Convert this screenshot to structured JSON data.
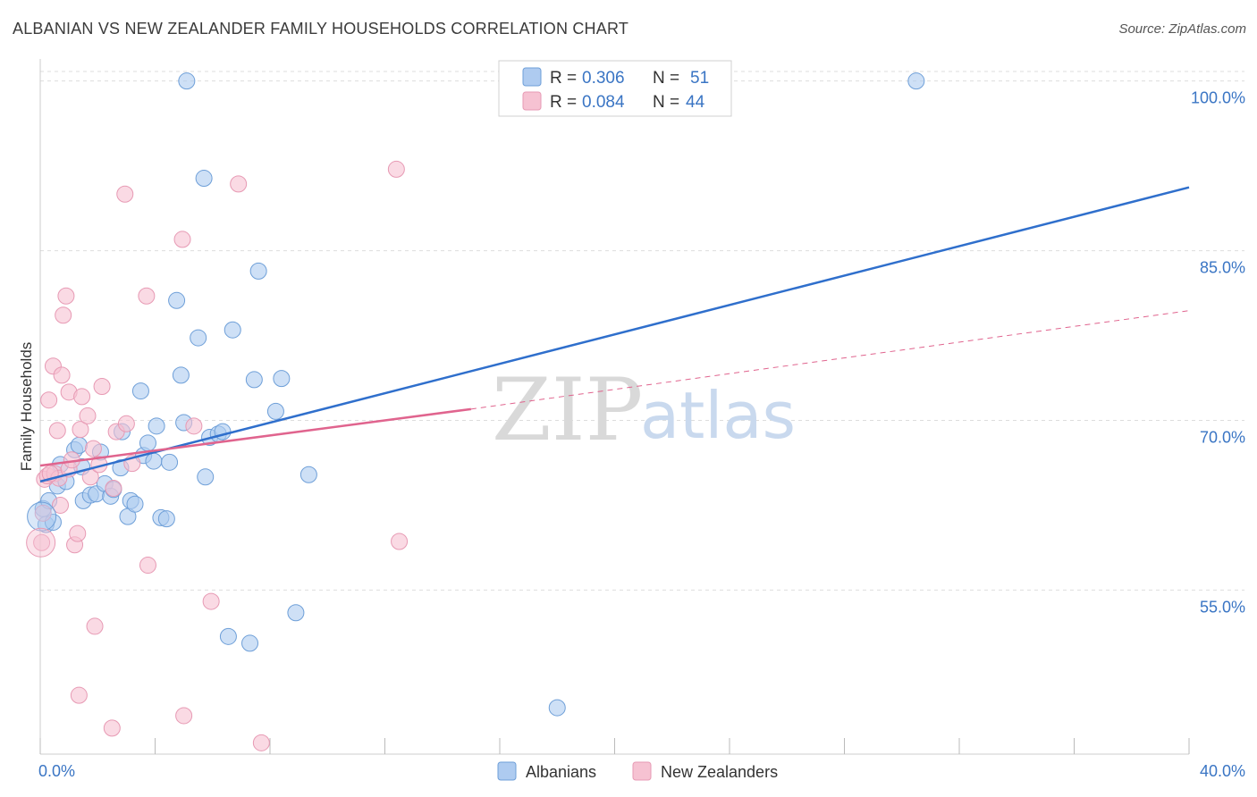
{
  "header": {
    "title": "ALBANIAN VS NEW ZEALANDER FAMILY HOUSEHOLDS CORRELATION CHART",
    "source": "Source: ZipAtlas.com"
  },
  "watermark": {
    "zip": "ZIP",
    "atlas": "atlas"
  },
  "legend": {
    "series": [
      {
        "r_label": "R =",
        "r_value": "0.306",
        "n_label": "N =",
        "n_value": "51"
      },
      {
        "r_label": "R =",
        "r_value": "0.084",
        "n_label": "N =",
        "n_value": "44"
      }
    ]
  },
  "bottom_legend": [
    "Albanians",
    "New Zealanders"
  ],
  "colors": {
    "blue_fill": "#aecbf0",
    "blue_stroke": "#6e9fd8",
    "blue_line": "#2f6fcc",
    "pink_fill": "#f6c2d2",
    "pink_stroke": "#e79ab4",
    "pink_line": "#e0648e",
    "grid": "#dddddd",
    "tick_text": "#3a75c4"
  },
  "chart_data": {
    "type": "scatter",
    "title": "ALBANIAN VS NEW ZEALANDER FAMILY HOUSEHOLDS CORRELATION CHART",
    "xlabel": "",
    "ylabel": "Family Households",
    "xlim": [
      0,
      40
    ],
    "ylim": [
      40.5,
      101
    ],
    "x_tick_labels": [
      "0.0%",
      "40.0%"
    ],
    "y_ticks": [
      55,
      70,
      85,
      100
    ],
    "y_tick_labels": [
      "55.0%",
      "70.0%",
      "85.0%",
      "100.0%"
    ],
    "grid": true,
    "legend_position": "top-center",
    "series": [
      {
        "name": "Albanians",
        "r": 0.306,
        "n": 51,
        "points": [
          [
            0.1,
            62.2
          ],
          [
            0.2,
            60.8
          ],
          [
            0.3,
            62.9
          ],
          [
            0.45,
            61.0
          ],
          [
            0.6,
            64.2
          ],
          [
            0.7,
            66.1
          ],
          [
            0.9,
            64.6
          ],
          [
            1.2,
            67.4
          ],
          [
            1.35,
            67.8
          ],
          [
            1.45,
            65.9
          ],
          [
            1.5,
            62.9
          ],
          [
            1.75,
            63.4
          ],
          [
            1.95,
            63.5
          ],
          [
            2.1,
            67.2
          ],
          [
            2.25,
            64.4
          ],
          [
            2.45,
            63.3
          ],
          [
            2.55,
            63.9
          ],
          [
            2.8,
            65.8
          ],
          [
            2.85,
            69.0
          ],
          [
            3.05,
            61.5
          ],
          [
            3.15,
            62.9
          ],
          [
            3.3,
            62.6
          ],
          [
            3.5,
            72.6
          ],
          [
            3.6,
            66.9
          ],
          [
            3.75,
            68.0
          ],
          [
            3.95,
            66.4
          ],
          [
            4.05,
            69.5
          ],
          [
            4.2,
            61.4
          ],
          [
            4.4,
            61.3
          ],
          [
            4.5,
            66.3
          ],
          [
            4.75,
            80.6
          ],
          [
            4.9,
            74.0
          ],
          [
            5.0,
            69.8
          ],
          [
            5.1,
            100.0
          ],
          [
            5.5,
            77.3
          ],
          [
            5.7,
            91.4
          ],
          [
            5.75,
            65.0
          ],
          [
            5.9,
            68.5
          ],
          [
            6.2,
            68.8
          ],
          [
            6.35,
            69.0
          ],
          [
            6.55,
            50.9
          ],
          [
            6.7,
            78.0
          ],
          [
            7.3,
            50.3
          ],
          [
            7.45,
            73.6
          ],
          [
            7.6,
            83.2
          ],
          [
            8.2,
            70.8
          ],
          [
            8.4,
            73.7
          ],
          [
            8.9,
            53.0
          ],
          [
            9.35,
            65.2
          ],
          [
            18.0,
            44.6
          ],
          [
            30.5,
            100.0
          ]
        ]
      },
      {
        "name": "New Zealanders",
        "r": 0.084,
        "n": 44,
        "points": [
          [
            0.05,
            59.2
          ],
          [
            0.1,
            61.8
          ],
          [
            0.15,
            64.8
          ],
          [
            0.25,
            65.1
          ],
          [
            0.3,
            71.8
          ],
          [
            0.45,
            74.8
          ],
          [
            0.5,
            65.3
          ],
          [
            0.6,
            69.1
          ],
          [
            0.65,
            64.9
          ],
          [
            0.7,
            62.5
          ],
          [
            0.75,
            74.0
          ],
          [
            0.8,
            79.3
          ],
          [
            0.9,
            81.0
          ],
          [
            1.0,
            72.5
          ],
          [
            1.0,
            65.7
          ],
          [
            1.2,
            59.0
          ],
          [
            1.3,
            60.0
          ],
          [
            1.35,
            45.7
          ],
          [
            1.4,
            69.2
          ],
          [
            1.45,
            72.1
          ],
          [
            1.65,
            70.4
          ],
          [
            1.75,
            65.0
          ],
          [
            1.85,
            67.5
          ],
          [
            1.9,
            51.8
          ],
          [
            2.05,
            66.1
          ],
          [
            2.15,
            73.0
          ],
          [
            2.5,
            42.8
          ],
          [
            2.55,
            64.0
          ],
          [
            2.65,
            69.0
          ],
          [
            2.95,
            90.0
          ],
          [
            3.0,
            69.7
          ],
          [
            3.2,
            66.2
          ],
          [
            3.7,
            81.0
          ],
          [
            3.75,
            57.2
          ],
          [
            4.95,
            86.0
          ],
          [
            5.0,
            43.9
          ],
          [
            5.35,
            69.5
          ],
          [
            5.95,
            54.0
          ],
          [
            6.9,
            90.9
          ],
          [
            7.7,
            41.5
          ],
          [
            12.4,
            92.2
          ],
          [
            12.5,
            59.3
          ],
          [
            0.35,
            65.3
          ],
          [
            1.1,
            66.5
          ]
        ]
      }
    ],
    "trend_lines": [
      {
        "series": "Albanians",
        "from": [
          0,
          64.6
        ],
        "to": [
          40,
          90.6
        ],
        "style": "solid"
      },
      {
        "series": "New Zealanders",
        "from": [
          0,
          66.0
        ],
        "to": [
          15,
          71.0
        ],
        "style": "solid"
      },
      {
        "series": "New Zealanders",
        "from": [
          15,
          71.0
        ],
        "to": [
          40,
          79.7
        ],
        "style": "dashed"
      }
    ]
  }
}
